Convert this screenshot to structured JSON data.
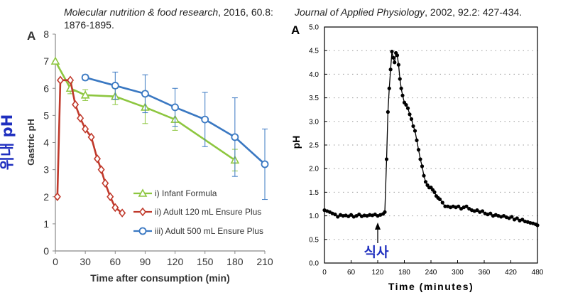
{
  "citations": {
    "left": {
      "journal": "Molecular nutrition & food research",
      "rest": ", 2016, 60.8: 1876-1895."
    },
    "right": {
      "journal": "Journal of Applied Physiology",
      "rest": ", 2002, 92.2: 427-434."
    }
  },
  "annotations": {
    "korean_ylabel": "위내 pH",
    "korean_meal": "식사",
    "meal_color": "#1f2fbf"
  },
  "chart_data": [
    {
      "type": "line",
      "panel_label": "A",
      "xlabel": "Time after consumption (min)",
      "ylabel": "Gastric pH",
      "xlim": [
        0,
        210
      ],
      "ylim": [
        0,
        8
      ],
      "xticks": [
        0,
        30,
        60,
        90,
        120,
        150,
        180,
        210
      ],
      "yticks": [
        0,
        1,
        2,
        3,
        4,
        5,
        6,
        7,
        8
      ],
      "legend_position": "lower-left",
      "series": [
        {
          "name": "i) Infant Formula",
          "color": "#8dc63f",
          "marker": "triangle",
          "x": [
            0,
            15,
            30,
            60,
            90,
            120,
            180
          ],
          "y": [
            7.0,
            6.0,
            5.75,
            5.7,
            5.3,
            4.85,
            3.35
          ],
          "err": [
            0,
            0.2,
            0.2,
            0.3,
            0.6,
            0.4,
            0.4
          ]
        },
        {
          "name": "ii) Adult 120 mL Ensure Plus",
          "color": "#c0392b",
          "marker": "diamond",
          "x": [
            2,
            5,
            15,
            20,
            25,
            30,
            36,
            42,
            46,
            50,
            55,
            60,
            67
          ],
          "y": [
            2.0,
            6.3,
            6.3,
            5.4,
            4.9,
            4.5,
            4.2,
            3.4,
            3.0,
            2.5,
            2.0,
            1.6,
            1.4
          ],
          "err": []
        },
        {
          "name": "iii) Adult 500 mL Ensure Plus",
          "color": "#3a78c2",
          "marker": "circle",
          "x": [
            30,
            60,
            90,
            120,
            150,
            180,
            210
          ],
          "y": [
            6.4,
            6.1,
            5.8,
            5.3,
            4.85,
            4.2,
            3.2
          ],
          "err": [
            0.1,
            0.5,
            0.7,
            0.7,
            1.0,
            1.45,
            1.3
          ]
        }
      ]
    },
    {
      "type": "line",
      "panel_label": "A",
      "xlabel": "Time (minutes)",
      "ylabel": "pH",
      "xlim": [
        0,
        480
      ],
      "ylim": [
        0,
        5
      ],
      "xticks": [
        0,
        60,
        120,
        180,
        240,
        300,
        360,
        420,
        480
      ],
      "yticks": [
        "0.0",
        "0.5",
        "1.0",
        "1.5",
        "2.0",
        "2.5",
        "3.0",
        "3.5",
        "4.0",
        "4.5",
        "5.0"
      ],
      "grid": "dotted horizontal",
      "series": [
        {
          "name": "",
          "color": "#000000",
          "marker": "filled-circle",
          "x": [
            0,
            6,
            12,
            18,
            24,
            30,
            36,
            42,
            48,
            54,
            60,
            66,
            72,
            78,
            84,
            90,
            96,
            102,
            108,
            114,
            120,
            126,
            132,
            136,
            140,
            143,
            146,
            149,
            152,
            155,
            158,
            161,
            164,
            167,
            170,
            173,
            176,
            180,
            184,
            188,
            192,
            196,
            200,
            204,
            208,
            212,
            216,
            220,
            224,
            228,
            232,
            236,
            240,
            244,
            248,
            252,
            256,
            260,
            266,
            272,
            278,
            284,
            290,
            296,
            302,
            308,
            314,
            320,
            326,
            332,
            338,
            344,
            350,
            356,
            362,
            368,
            374,
            380,
            386,
            392,
            398,
            404,
            410,
            416,
            422,
            428,
            434,
            440,
            446,
            452,
            458,
            464,
            470,
            476,
            480
          ],
          "y": [
            1.12,
            1.1,
            1.08,
            1.05,
            1.03,
            0.98,
            1.02,
            1.0,
            1.01,
            0.99,
            1.02,
            0.98,
            1.0,
            1.03,
            0.99,
            1.01,
            1.0,
            1.02,
            1.01,
            1.03,
            1.0,
            1.02,
            1.04,
            1.08,
            2.2,
            3.2,
            3.7,
            4.1,
            4.48,
            4.35,
            4.25,
            4.45,
            4.4,
            4.2,
            3.9,
            3.7,
            3.55,
            3.4,
            3.35,
            3.28,
            3.15,
            3.05,
            2.9,
            2.8,
            2.6,
            2.4,
            2.2,
            2.05,
            1.85,
            1.72,
            1.65,
            1.6,
            1.6,
            1.55,
            1.5,
            1.42,
            1.38,
            1.35,
            1.28,
            1.2,
            1.2,
            1.18,
            1.2,
            1.18,
            1.2,
            1.15,
            1.18,
            1.2,
            1.15,
            1.12,
            1.1,
            1.12,
            1.08,
            1.1,
            1.05,
            1.03,
            1.05,
            1.0,
            1.02,
            1.0,
            0.98,
            1.0,
            0.97,
            0.95,
            0.98,
            0.92,
            0.95,
            0.9,
            0.92,
            0.88,
            0.87,
            0.85,
            0.84,
            0.82,
            0.8
          ]
        }
      ]
    }
  ]
}
